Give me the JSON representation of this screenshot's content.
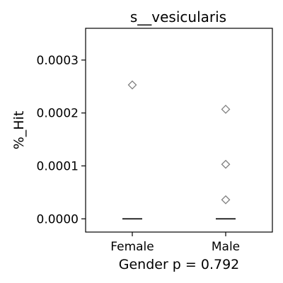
{
  "chart_data": {
    "type": "scatter",
    "title": "s__vesicularis",
    "xlabel": "Gender p = 0.792",
    "ylabel": "%_Hit",
    "categories": [
      "Female",
      "Male"
    ],
    "ylim": [
      -2.5e-05,
      0.00036
    ],
    "yticks": [
      0,
      0.0001,
      0.0002,
      0.0003
    ],
    "ytick_labels": [
      "0.0000",
      "0.0001",
      "0.0002",
      "0.0003"
    ],
    "medians": [
      0,
      0
    ],
    "outliers": [
      {
        "category": "Female",
        "values": [
          0.000253
        ]
      },
      {
        "category": "Male",
        "values": [
          0.000207,
          0.000103,
          3.6e-05
        ]
      }
    ],
    "grid": false,
    "marker": "diamond-open",
    "marker_color": "#808080",
    "median_color": "#000000"
  }
}
